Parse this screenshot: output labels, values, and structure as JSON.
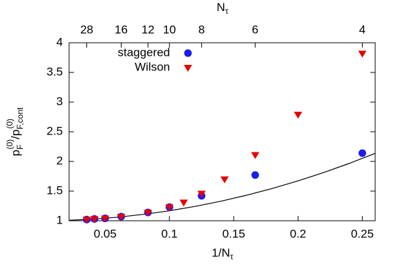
{
  "chart_data": {
    "type": "scatter",
    "xlabel": [
      "1/N",
      "τ"
    ],
    "ylabel": [
      "p",
      "F",
      "(0)",
      "/p",
      "F,cont",
      "(0)"
    ],
    "x2label": [
      "N",
      "τ"
    ],
    "xlim": [
      0.022,
      0.26
    ],
    "ylim": [
      1,
      4
    ],
    "xticks": [
      0.05,
      0.1,
      0.15,
      0.2,
      0.25
    ],
    "yticks": [
      1,
      1.5,
      2,
      2.5,
      3,
      3.5,
      4
    ],
    "x2scale": "reciprocal",
    "x2ticks": [
      28,
      16,
      12,
      10,
      8,
      6,
      4
    ],
    "legend": "top-left",
    "series": [
      {
        "name": "staggered",
        "color": "#1c1cf0",
        "marker": "circle",
        "x": [
          0.0357,
          0.0417,
          0.05,
          0.0625,
          0.0833,
          0.1,
          0.125,
          0.1667,
          0.25
        ],
        "values": [
          1.02,
          1.03,
          1.04,
          1.07,
          1.14,
          1.23,
          1.42,
          1.77,
          2.14
        ]
      },
      {
        "name": "Wilson",
        "color": "#e60000",
        "marker": "triangle-down",
        "x": [
          0.0357,
          0.0417,
          0.05,
          0.0625,
          0.0833,
          0.1,
          0.1111,
          0.125,
          0.1429,
          0.1667,
          0.2,
          0.25
        ],
        "values": [
          1.02,
          1.03,
          1.04,
          1.07,
          1.14,
          1.23,
          1.31,
          1.46,
          1.7,
          2.11,
          2.79,
          3.82
        ]
      }
    ],
    "curve": {
      "color": "#000000",
      "x": [
        0.022,
        0.04,
        0.06,
        0.08,
        0.1,
        0.12,
        0.14,
        0.16,
        0.18,
        0.2,
        0.22,
        0.24,
        0.26
      ],
      "values": [
        1.008,
        1.027,
        1.06,
        1.108,
        1.168,
        1.242,
        1.329,
        1.43,
        1.544,
        1.672,
        1.813,
        1.968,
        2.136
      ]
    }
  }
}
